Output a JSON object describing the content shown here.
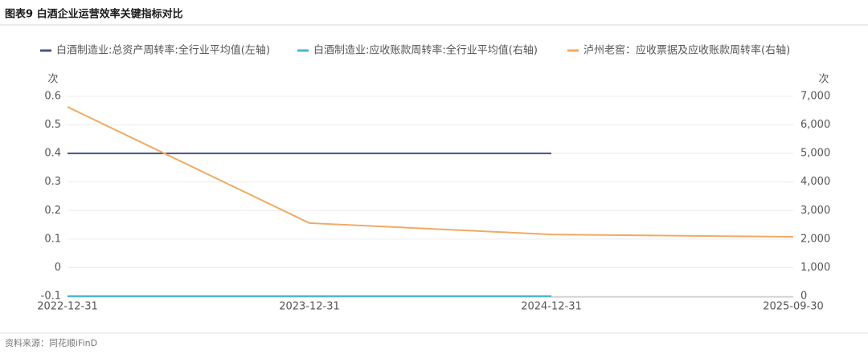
{
  "chart_data": {
    "type": "line",
    "title": "图表9  白酒企业运营效率关键指标对比",
    "y_unit": "次",
    "y2_unit": "次",
    "categories": [
      "2022-12-31",
      "2023-12-31",
      "2024-12-31",
      "2025-09-30"
    ],
    "series": [
      {
        "name": "白酒制造业:总资产周转率:全行业平均值(左轴)",
        "color": "#4a5688",
        "values": [
          0.4,
          0.4,
          0.4,
          null
        ]
      },
      {
        "name": "白酒制造业:应收账款周转率:全行业平均值(右轴)",
        "color": "#4bb6cc",
        "axis": "y2",
        "values": [
          0,
          0,
          0,
          null
        ]
      },
      {
        "name": "泸州老窖：应收票据及应收账款周转率(右轴)",
        "color": "#f0aa64",
        "axis": "y2",
        "values": [
          6630,
          2560,
          2160,
          2080
        ]
      }
    ],
    "ylim": [
      -0.1,
      0.6
    ],
    "yticks": [
      -0.1,
      0,
      0.1,
      0.2,
      0.3,
      0.4,
      0.5,
      0.6
    ],
    "y2lim": [
      0,
      7000
    ],
    "y2ticks": [
      0,
      {
        "value": 1000,
        "label": "1,000"
      },
      {
        "value": 2000,
        "label": "2,000"
      },
      {
        "value": 3000,
        "label": "3,000"
      },
      {
        "value": 4000,
        "label": "4,000"
      },
      {
        "value": 5000,
        "label": "5,000"
      },
      {
        "value": 6000,
        "label": "6,000"
      },
      {
        "value": 7000,
        "label": "7,000"
      }
    ],
    "grid": true,
    "legend": "top",
    "source": "资料来源：同花顺iFinD"
  }
}
